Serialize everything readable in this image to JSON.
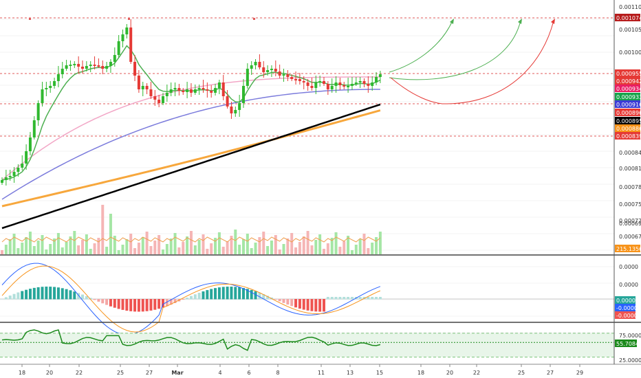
{
  "chart_data": {
    "type": "candlestick",
    "main": {
      "y_ticks": [
        "0.0011000",
        "0.0010500",
        "0.0010000",
        "0.0008400",
        "0.0008100",
        "0.0007800",
        "0.0007500",
        "0.0007200",
        "0.0006950",
        "0.0006750"
      ],
      "ylim": [
        0.00066,
        0.0011
      ],
      "price_tags": [
        {
          "label": "0.0010741",
          "value": 0.0010741,
          "color": "#b71c1c"
        },
        {
          "label": "0.0009555",
          "value": 0.0009555,
          "color": "#e53935"
        },
        {
          "label": "0.0009425",
          "value": 0.0009425,
          "color": "#e53935"
        },
        {
          "label": "0.0009346",
          "value": 0.0009346,
          "color": "#e91e63"
        },
        {
          "label": "0.0009335",
          "value": 0.0009335,
          "color": "#16a34a"
        },
        {
          "label": "0.0009160",
          "value": 0.000916,
          "color": "#3b3bd6"
        },
        {
          "label": "0.0008967",
          "value": 0.0008967,
          "color": "#e53935"
        },
        {
          "label": "0.0008953",
          "value": 0.0008953,
          "color": "#000000"
        },
        {
          "label": "0.0008863",
          "value": 0.0008863,
          "color": "#f7931a"
        },
        {
          "label": "0.0008396",
          "value": 0.0008396,
          "color": "#e53935"
        }
      ],
      "horizontal_levels": [
        0.0010741,
        0.0009555,
        0.000916,
        0.0008396
      ],
      "volume_tag": {
        "label": "215.1356",
        "color": "#f7931a"
      }
    },
    "x_labels": [
      "18",
      "20",
      "22",
      "25",
      "27",
      "Mar",
      "4",
      "6",
      "8",
      "11",
      "13",
      "15",
      "18",
      "20",
      "22",
      "25",
      "27",
      "29"
    ],
    "series": [
      {
        "name": "",
        "type": "candles",
        "open_close": "green-up red-down"
      },
      {
        "name": "",
        "type": "line",
        "color": "#f7a73c"
      },
      {
        "name": "",
        "type": "line",
        "color": "#000000"
      },
      {
        "name": "",
        "type": "line",
        "color": "#7b7bdc"
      },
      {
        "name": "",
        "type": "line",
        "color": "#f2a6c6"
      },
      {
        "name": "",
        "type": "line",
        "color": "#4caf50"
      }
    ],
    "macd": {
      "y_ticks": [
        "0.0000",
        "0.0000",
        "0.0000"
      ],
      "tags": [
        {
          "label": "0.0000",
          "color": "#26a69a"
        },
        {
          "label": "-0.0000",
          "color": "#2962ff"
        },
        {
          "label": "-0.0000",
          "color": "#ef5350"
        }
      ]
    },
    "rsi": {
      "y_ticks": [
        "75.0000",
        "55.7084",
        "25.0000"
      ],
      "value_tag": {
        "label": "55.7084",
        "color": "#1b8a1b"
      },
      "ylim": [
        10,
        95
      ]
    }
  }
}
